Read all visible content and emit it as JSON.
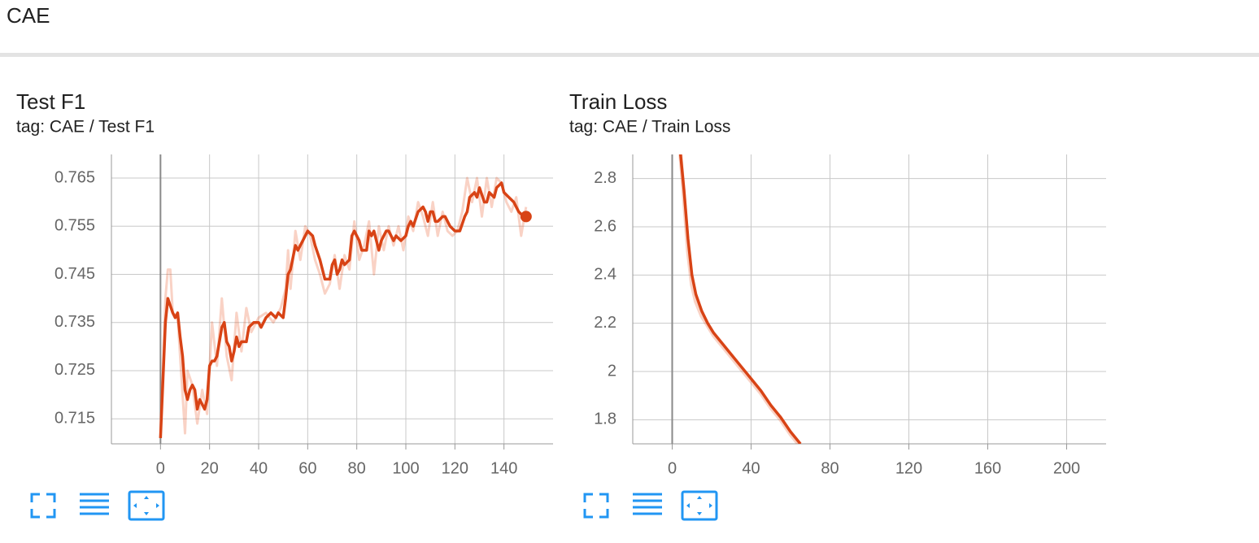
{
  "header": {
    "title": "CAE"
  },
  "chart_data": [
    {
      "type": "line",
      "title": "Test F1",
      "subtitle": "tag: CAE / Test F1",
      "xlim": [
        -20,
        160
      ],
      "xticks": [
        0,
        20,
        40,
        60,
        80,
        100,
        120,
        140
      ],
      "ylim": [
        0.7098,
        0.7699
      ],
      "yticks": [
        0.715,
        0.725,
        0.735,
        0.745,
        0.755,
        0.765
      ],
      "grid": true,
      "series": [
        {
          "color": "#e64a19",
          "opacity": 0.25,
          "width": 3,
          "x": [
            0,
            2,
            3,
            4,
            5,
            7,
            9,
            10,
            11,
            13,
            15,
            17,
            19,
            21,
            23,
            25,
            27,
            29,
            31,
            33,
            35,
            37,
            40,
            43,
            46,
            49,
            51,
            52,
            53,
            55,
            57,
            59,
            61,
            63,
            65,
            67,
            69,
            71,
            73,
            75,
            77,
            79,
            81,
            83,
            85,
            87,
            89,
            91,
            93,
            95,
            97,
            99,
            101,
            103,
            105,
            107,
            109,
            111,
            113,
            115,
            117,
            119,
            121,
            123,
            125,
            127,
            129,
            131,
            133,
            135,
            137,
            139,
            141,
            143,
            145,
            147,
            149
          ],
          "values": [
            0.711,
            0.74,
            0.746,
            0.746,
            0.737,
            0.736,
            0.72,
            0.712,
            0.725,
            0.722,
            0.714,
            0.721,
            0.716,
            0.735,
            0.726,
            0.74,
            0.728,
            0.723,
            0.737,
            0.729,
            0.738,
            0.733,
            0.736,
            0.737,
            0.735,
            0.738,
            0.742,
            0.75,
            0.742,
            0.754,
            0.748,
            0.755,
            0.753,
            0.748,
            0.745,
            0.741,
            0.743,
            0.749,
            0.742,
            0.749,
            0.746,
            0.756,
            0.748,
            0.751,
            0.756,
            0.745,
            0.755,
            0.75,
            0.755,
            0.751,
            0.755,
            0.75,
            0.757,
            0.754,
            0.76,
            0.757,
            0.753,
            0.76,
            0.753,
            0.758,
            0.754,
            0.753,
            0.754,
            0.758,
            0.765,
            0.76,
            0.765,
            0.757,
            0.765,
            0.759,
            0.765,
            0.764,
            0.76,
            0.758,
            0.761,
            0.753,
            0.759
          ]
        },
        {
          "color": "#d84315",
          "opacity": 1,
          "width": 3.5,
          "end_marker": true,
          "x": [
            0,
            2,
            3,
            5,
            6,
            7,
            8,
            9,
            10,
            11,
            12,
            13,
            14,
            15,
            16,
            17,
            18,
            19,
            20,
            21,
            22,
            23,
            25,
            26,
            27,
            28,
            29,
            30,
            31,
            32,
            33,
            35,
            36,
            38,
            40,
            41,
            43,
            45,
            47,
            48,
            50,
            51,
            52,
            53,
            55,
            56,
            57,
            58,
            60,
            62,
            63,
            65,
            67,
            68,
            69,
            70,
            71,
            72,
            73,
            74,
            75,
            77,
            78,
            79,
            81,
            82,
            84,
            85,
            86,
            87,
            88,
            89,
            90,
            92,
            93,
            95,
            96,
            98,
            100,
            101,
            102,
            103,
            105,
            107,
            108,
            109,
            110,
            111,
            112,
            113,
            115,
            116,
            117,
            118,
            120,
            122,
            124,
            125,
            126,
            128,
            129,
            130,
            132,
            133,
            134,
            136,
            137,
            139,
            140,
            142,
            144,
            145,
            146,
            148,
            149
          ],
          "values": [
            0.711,
            0.735,
            0.74,
            0.737,
            0.736,
            0.737,
            0.732,
            0.728,
            0.721,
            0.719,
            0.721,
            0.722,
            0.721,
            0.717,
            0.719,
            0.718,
            0.717,
            0.719,
            0.726,
            0.727,
            0.727,
            0.728,
            0.734,
            0.735,
            0.731,
            0.73,
            0.727,
            0.729,
            0.732,
            0.73,
            0.731,
            0.731,
            0.734,
            0.735,
            0.735,
            0.734,
            0.736,
            0.737,
            0.736,
            0.737,
            0.736,
            0.74,
            0.745,
            0.746,
            0.751,
            0.75,
            0.751,
            0.752,
            0.754,
            0.753,
            0.751,
            0.748,
            0.744,
            0.744,
            0.744,
            0.747,
            0.748,
            0.745,
            0.746,
            0.748,
            0.747,
            0.748,
            0.753,
            0.754,
            0.752,
            0.75,
            0.75,
            0.754,
            0.753,
            0.754,
            0.752,
            0.75,
            0.752,
            0.754,
            0.754,
            0.752,
            0.753,
            0.752,
            0.753,
            0.755,
            0.756,
            0.755,
            0.758,
            0.759,
            0.758,
            0.756,
            0.758,
            0.758,
            0.756,
            0.756,
            0.757,
            0.757,
            0.756,
            0.755,
            0.754,
            0.754,
            0.757,
            0.758,
            0.761,
            0.762,
            0.761,
            0.763,
            0.76,
            0.76,
            0.762,
            0.761,
            0.763,
            0.764,
            0.762,
            0.761,
            0.76,
            0.759,
            0.758,
            0.757,
            0.757
          ]
        }
      ]
    },
    {
      "type": "line",
      "title": "Train Loss",
      "subtitle": "tag: CAE / Train Loss",
      "xlim": [
        -20,
        220
      ],
      "xticks": [
        0,
        40,
        80,
        120,
        160,
        200
      ],
      "ylim": [
        1.7,
        2.9
      ],
      "yticks": [
        1.8,
        2,
        2.2,
        2.4,
        2.6,
        2.8
      ],
      "grid": true,
      "series": [
        {
          "color": "#e64a19",
          "opacity": 0.25,
          "width": 5,
          "x": [
            4,
            6,
            8,
            10,
            12,
            15,
            18,
            21,
            25,
            30,
            35,
            40,
            45,
            50,
            55,
            60,
            65
          ],
          "values": [
            2.92,
            2.72,
            2.5,
            2.36,
            2.29,
            2.23,
            2.19,
            2.15,
            2.11,
            2.06,
            2.01,
            1.96,
            1.91,
            1.85,
            1.8,
            1.74,
            1.69
          ]
        },
        {
          "color": "#d84315",
          "opacity": 1,
          "width": 3.5,
          "x": [
            4,
            6,
            8,
            10,
            12,
            15,
            18,
            21,
            25,
            30,
            35,
            40,
            45,
            50,
            55,
            60,
            65
          ],
          "values": [
            2.92,
            2.75,
            2.55,
            2.4,
            2.32,
            2.25,
            2.2,
            2.16,
            2.12,
            2.07,
            2.02,
            1.97,
            1.92,
            1.86,
            1.81,
            1.75,
            1.7
          ]
        }
      ]
    }
  ]
}
